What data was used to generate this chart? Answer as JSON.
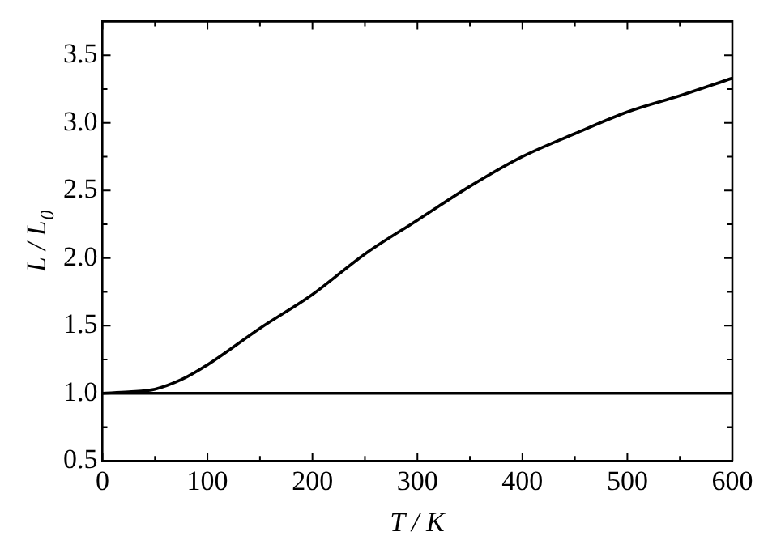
{
  "chart_data": {
    "type": "line",
    "xlabel": "T / K",
    "ylabel": "L / L$_{0}$",
    "xlim": [
      0,
      600
    ],
    "ylim": [
      0.5,
      3.75
    ],
    "xticks": [
      0,
      {
        "value": 50,
        "label": null
      },
      100,
      {
        "value": 150,
        "label": null
      },
      200,
      {
        "value": 250,
        "label": null
      },
      300,
      {
        "value": 350,
        "label": null
      },
      400,
      {
        "value": 450,
        "label": null
      },
      500,
      {
        "value": 550,
        "label": null
      },
      600
    ],
    "yticks": [
      0.5,
      {
        "value": 0.75,
        "label": null
      },
      "1.0",
      {
        "value": 1.25,
        "label": null
      },
      1.5,
      {
        "value": 1.75,
        "label": null
      },
      "2.0",
      {
        "value": 2.25,
        "label": null
      },
      2.5,
      {
        "value": 2.75,
        "label": null
      },
      "3.0",
      {
        "value": 3.25,
        "label": null
      },
      3.5
    ],
    "x": [
      0,
      25,
      50,
      75,
      100,
      150,
      200,
      250,
      300,
      350,
      400,
      450,
      500,
      550,
      600
    ],
    "series": [
      {
        "color": "#000000",
        "values": [
          1,
          1.01,
          1.03,
          1.1,
          1.21,
          1.48,
          1.73,
          2.03,
          2.28,
          2.53,
          2.75,
          2.92,
          3.08,
          3.2,
          3.33
        ]
      },
      {
        "color": "#000000",
        "x": [
          0,
          600
        ],
        "values": [
          1,
          1
        ]
      }
    ],
    "grid": false,
    "legend": false,
    "marker": "none",
    "line_style": "solid"
  }
}
